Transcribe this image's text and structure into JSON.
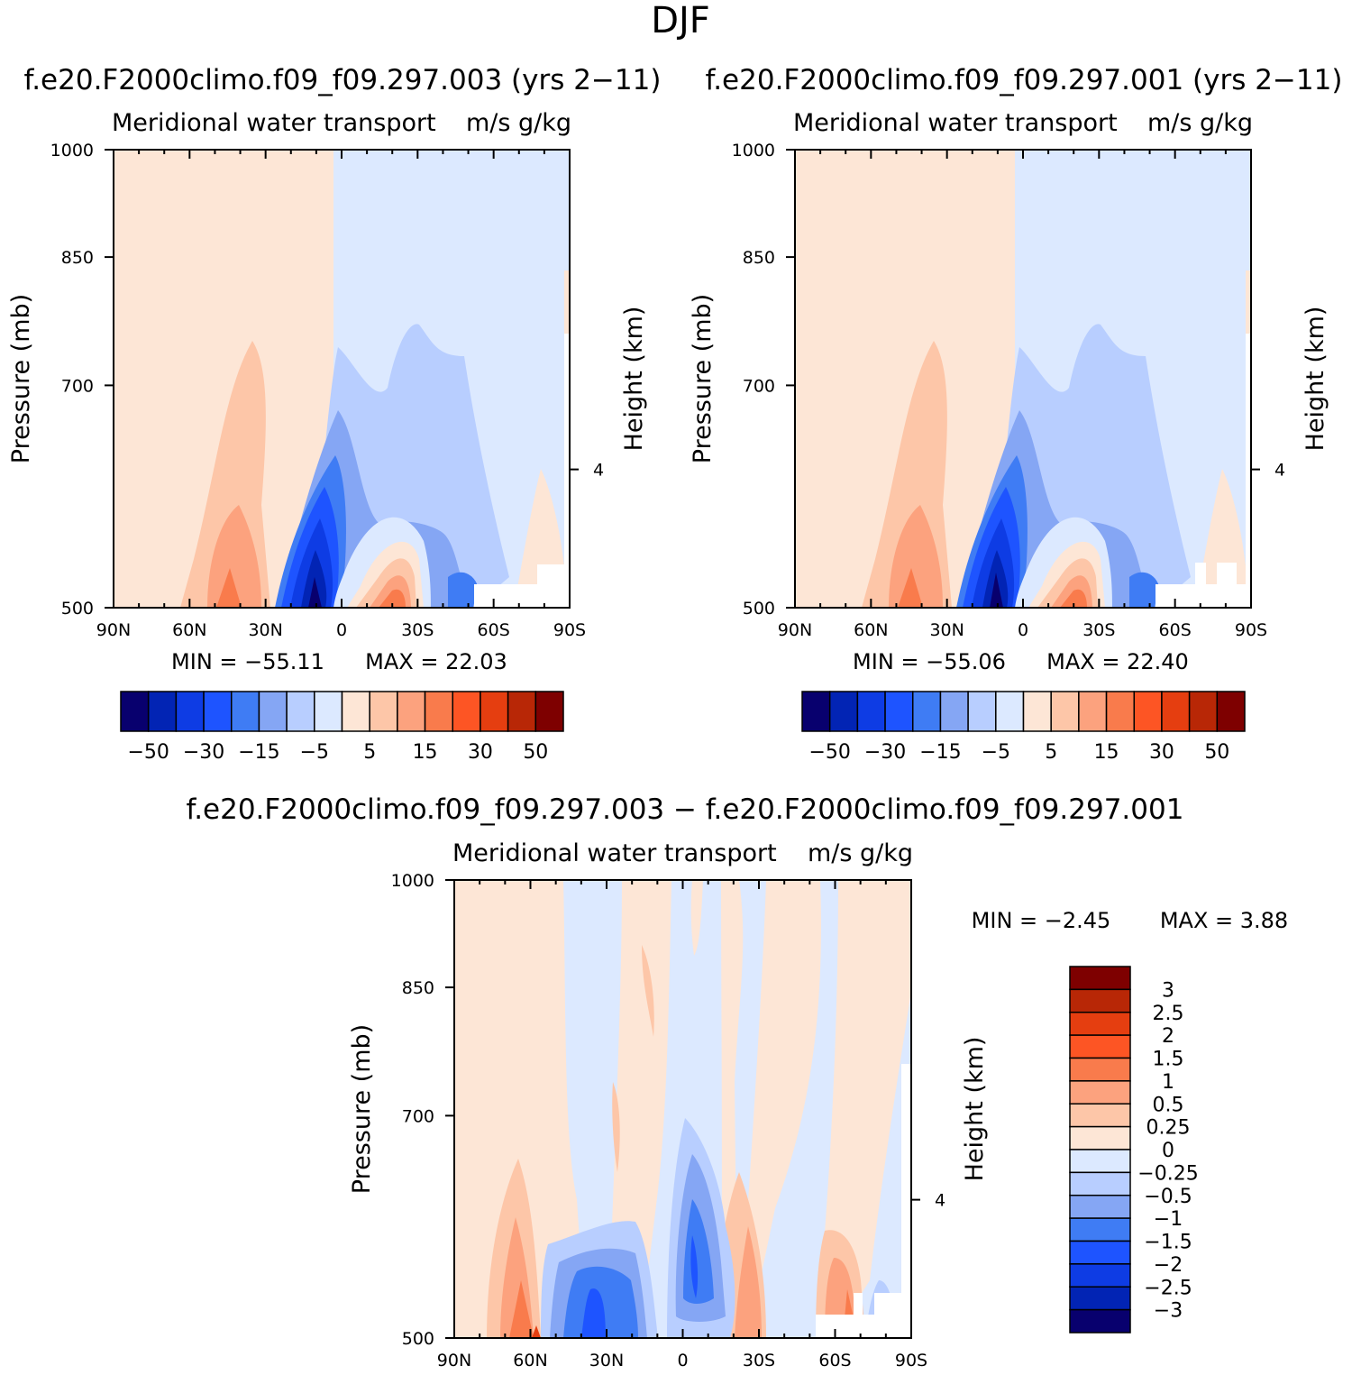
{
  "page_title": "DJF",
  "colors": {
    "left_scale": [
      "#08006e",
      "#0224b4",
      "#0e3ce4",
      "#1e54ff",
      "#3f7cf4",
      "#85a6f4",
      "#b8ceff",
      "#dce9ff",
      "#fde6d6",
      "#fdc6a8",
      "#fca27e",
      "#f97b4c",
      "#fd5524",
      "#e53e10",
      "#b82706",
      "#7e0000"
    ],
    "diff_scale": [
      "#08006e",
      "#0224b4",
      "#0e3ce4",
      "#1e54ff",
      "#3f7cf4",
      "#85a6f4",
      "#b8ceff",
      "#dce9ff",
      "#fde6d6",
      "#fdc6a8",
      "#fca27e",
      "#f97b4c",
      "#fd5524",
      "#e53e10",
      "#b82706",
      "#7e0000"
    ]
  },
  "chart_data": [
    {
      "type": "heatmap",
      "title": "f.e20.F2000climo.f09_f09.297.003 (yrs 2-11)",
      "subtitle_left": "Meridional water transport",
      "subtitle_right": "m/s g/kg",
      "xlabel": "",
      "ylabel": "Pressure (mb)",
      "ylabel_right": "Height (km)",
      "x_ticks": [
        "90N",
        "60N",
        "30N",
        "0",
        "30S",
        "60S",
        "90S"
      ],
      "y_ticks": [
        "500",
        "700",
        "850",
        "1000"
      ],
      "y_right_ticks": [
        "4"
      ],
      "ylim": [
        1000,
        500
      ],
      "min_label": "MIN = -55.11",
      "max_label": "MAX = 22.03",
      "min": -55.11,
      "max": 22.03,
      "colorbar_labels": [
        "-50",
        "-30",
        "-15",
        "-5",
        "5",
        "15",
        "30",
        "50"
      ]
    },
    {
      "type": "heatmap",
      "title": "f.e20.F2000climo.f09_f09.297.001 (yrs 2-11)",
      "subtitle_left": "Meridional water transport",
      "subtitle_right": "m/s g/kg",
      "xlabel": "",
      "ylabel": "Pressure (mb)",
      "ylabel_right": "Height (km)",
      "x_ticks": [
        "90N",
        "60N",
        "30N",
        "0",
        "30S",
        "60S",
        "90S"
      ],
      "y_ticks": [
        "500",
        "700",
        "850",
        "1000"
      ],
      "y_right_ticks": [
        "4"
      ],
      "ylim": [
        1000,
        500
      ],
      "min_label": "MIN = -55.06",
      "max_label": "MAX = 22.40",
      "min": -55.06,
      "max": 22.4,
      "colorbar_labels": [
        "-50",
        "-30",
        "-15",
        "-5",
        "5",
        "15",
        "30",
        "50"
      ]
    },
    {
      "type": "heatmap",
      "title": "f.e20.F2000climo.f09_f09.297.003 - f.e20.F2000climo.f09_f09.297.001",
      "subtitle_left": "Meridional water transport",
      "subtitle_right": "m/s g/kg",
      "xlabel": "",
      "ylabel": "Pressure (mb)",
      "ylabel_right": "Height (km)",
      "x_ticks": [
        "90N",
        "60N",
        "30N",
        "0",
        "30S",
        "60S",
        "90S"
      ],
      "y_ticks": [
        "500",
        "700",
        "850",
        "1000"
      ],
      "y_right_ticks": [
        "4"
      ],
      "ylim": [
        1000,
        500
      ],
      "min_label": "MIN = -2.45",
      "max_label": "MAX = 3.88",
      "min": -2.45,
      "max": 3.88,
      "colorbar_labels": [
        "3",
        "2.5",
        "2",
        "1.5",
        "1",
        "0.5",
        "0.25",
        "0",
        "-0.25",
        "-0.5",
        "-1",
        "-1.5",
        "-2",
        "-2.5",
        "-3"
      ]
    }
  ]
}
